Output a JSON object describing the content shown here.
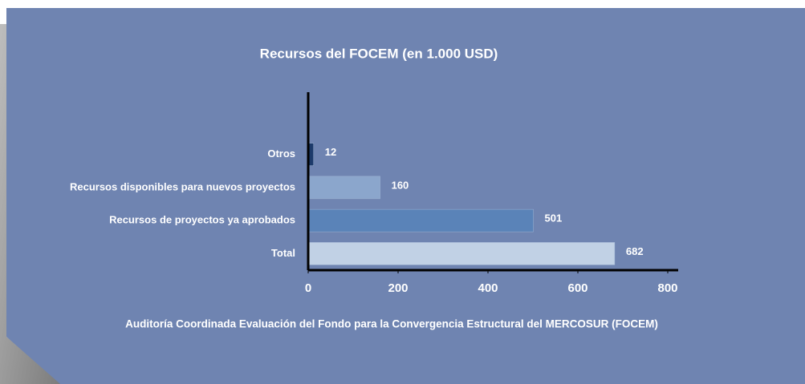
{
  "chart_data": {
    "type": "hbar",
    "title": "Recursos del FOCEM (en 1.000 USD)",
    "categories": [
      "Otros",
      "Recursos disponibles para nuevos proyectos",
      "Recursos de proyectos ya aprobados",
      "Total"
    ],
    "values": [
      12,
      160,
      501,
      682
    ],
    "colors": [
      "#1c3a6a",
      "#8ba6cc",
      "#5a83b8",
      "#c1d1e5"
    ],
    "xlim": [
      0,
      800
    ],
    "xticks": [
      0,
      200,
      400,
      600,
      800
    ],
    "footer": "Auditoría Coordinada Evaluación del Fondo para la Convergencia Estructural del MERCOSUR (FOCEM)"
  }
}
